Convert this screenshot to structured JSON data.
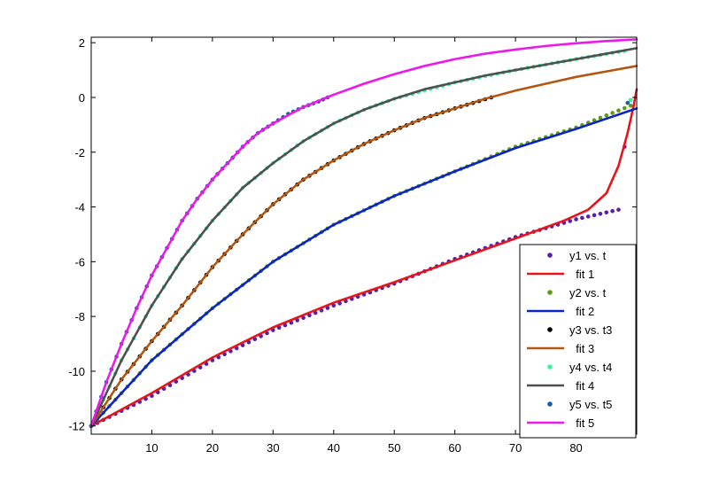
{
  "chart_data": {
    "type": "scatter",
    "title": "",
    "xlabel": "",
    "ylabel": "",
    "xlim": [
      0,
      90
    ],
    "ylim": [
      -12.3,
      2.2
    ],
    "grid": false,
    "legend_position": "bottom-right",
    "x_ticks": [
      10,
      20,
      30,
      40,
      50,
      60,
      70,
      80
    ],
    "y_ticks": [
      2,
      0,
      -2,
      -4,
      -6,
      -8,
      -10,
      -12
    ],
    "series": [
      {
        "name": "y1 vs. t",
        "kind": "points",
        "color": "#5b1fa6",
        "x": [
          0,
          10,
          20,
          30,
          40,
          50,
          60,
          70,
          80,
          87,
          88,
          89
        ],
        "y": [
          -12.0,
          -10.9,
          -9.6,
          -8.5,
          -7.6,
          -6.8,
          -5.9,
          -5.1,
          -4.45,
          -4.1,
          -1.8,
          -0.1
        ]
      },
      {
        "name": "fit 1",
        "kind": "line",
        "color": "#e8141c",
        "x": [
          0,
          10,
          20,
          30,
          40,
          50,
          60,
          70,
          78,
          82,
          85,
          87,
          88.5,
          89.5,
          90
        ],
        "y": [
          -12.0,
          -10.8,
          -9.5,
          -8.4,
          -7.5,
          -6.75,
          -5.95,
          -5.15,
          -4.5,
          -4.1,
          -3.5,
          -2.5,
          -1.3,
          -0.3,
          0.3
        ]
      },
      {
        "name": "y2 vs. t",
        "kind": "points",
        "color": "#5f9a16",
        "x": [
          0,
          10,
          20,
          30,
          40,
          50,
          60,
          70,
          80,
          89
        ],
        "y": [
          -12.0,
          -9.6,
          -7.7,
          -6.0,
          -4.65,
          -3.6,
          -2.7,
          -1.8,
          -1.1,
          -0.3
        ]
      },
      {
        "name": "fit 2",
        "kind": "line",
        "color": "#0a24c6",
        "x": [
          0,
          10,
          20,
          30,
          40,
          50,
          60,
          70,
          80,
          90
        ],
        "y": [
          -12.0,
          -9.6,
          -7.7,
          -6.0,
          -4.65,
          -3.6,
          -2.7,
          -1.85,
          -1.15,
          -0.4
        ]
      },
      {
        "name": "y3 vs. t3",
        "kind": "points",
        "color": "#000000",
        "x": [
          0,
          5,
          10,
          15,
          20,
          25,
          30,
          35,
          40,
          45,
          50,
          55,
          60,
          66
        ],
        "y": [
          -12.0,
          -10.3,
          -8.9,
          -7.6,
          -6.2,
          -5.0,
          -3.9,
          -3.0,
          -2.3,
          -1.7,
          -1.2,
          -0.75,
          -0.4,
          0.0
        ]
      },
      {
        "name": "fit 3",
        "kind": "line",
        "color": "#b5560e",
        "x": [
          0,
          5,
          10,
          15,
          20,
          25,
          30,
          35,
          40,
          45,
          50,
          55,
          60,
          65,
          70,
          75,
          80,
          85,
          90
        ],
        "y": [
          -12.0,
          -10.3,
          -8.9,
          -7.6,
          -6.2,
          -5.0,
          -3.9,
          -3.0,
          -2.3,
          -1.7,
          -1.2,
          -0.75,
          -0.4,
          -0.05,
          0.25,
          0.5,
          0.75,
          0.95,
          1.15
        ]
      },
      {
        "name": "y4 vs. t4",
        "kind": "points",
        "color": "#3ef0a0",
        "x": [
          0,
          5,
          10,
          15,
          20,
          25,
          30,
          35,
          40,
          45,
          50,
          60,
          70,
          80,
          88,
          89
        ],
        "y": [
          -12.0,
          -9.6,
          -7.6,
          -5.9,
          -4.5,
          -3.3,
          -2.4,
          -1.6,
          -0.95,
          -0.45,
          -0.05,
          0.55,
          1.0,
          1.4,
          1.7,
          -0.1
        ]
      },
      {
        "name": "fit 4",
        "kind": "line",
        "color": "#4f4f4f",
        "x": [
          0,
          5,
          10,
          15,
          20,
          25,
          30,
          35,
          40,
          45,
          50,
          55,
          60,
          65,
          70,
          75,
          80,
          85,
          90
        ],
        "y": [
          -12.0,
          -9.6,
          -7.6,
          -5.9,
          -4.5,
          -3.3,
          -2.4,
          -1.6,
          -0.95,
          -0.45,
          -0.05,
          0.3,
          0.55,
          0.8,
          1.0,
          1.2,
          1.4,
          1.6,
          1.8
        ]
      },
      {
        "name": "y5 vs. t5",
        "kind": "points",
        "color": "#1a5fa0",
        "x": [
          0,
          2.5,
          5,
          7.5,
          10,
          12.5,
          15,
          17.5,
          20,
          22.5,
          25,
          27.5,
          30,
          32.5,
          35,
          37.5,
          39,
          88.5
        ],
        "y": [
          -12.0,
          -10.4,
          -9.0,
          -7.7,
          -6.5,
          -5.5,
          -4.5,
          -3.7,
          -3.0,
          -2.4,
          -1.8,
          -1.3,
          -0.95,
          -0.6,
          -0.35,
          -0.15,
          0.0,
          -0.2
        ]
      },
      {
        "name": "fit 5",
        "kind": "line",
        "color": "#ec19ec",
        "x": [
          0,
          2.5,
          5,
          7.5,
          10,
          12.5,
          15,
          17.5,
          20,
          22.5,
          25,
          27.5,
          30,
          35,
          40,
          45,
          50,
          55,
          60,
          65,
          70,
          75,
          80,
          85,
          90
        ],
        "y": [
          -12.0,
          -10.4,
          -9.0,
          -7.7,
          -6.5,
          -5.5,
          -4.5,
          -3.7,
          -3.0,
          -2.4,
          -1.8,
          -1.3,
          -0.95,
          -0.35,
          0.1,
          0.5,
          0.85,
          1.15,
          1.4,
          1.6,
          1.75,
          1.88,
          1.98,
          2.06,
          2.12
        ]
      }
    ]
  }
}
